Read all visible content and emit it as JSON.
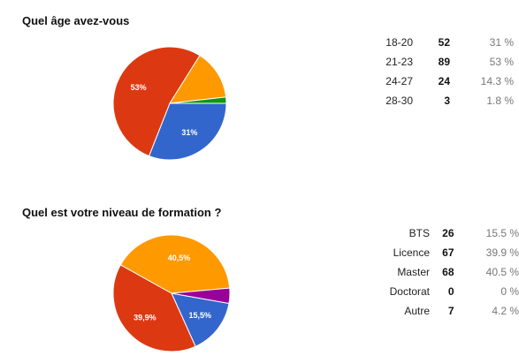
{
  "chart_data": [
    {
      "type": "pie",
      "title": "Quel âge avez-vous",
      "slices": [
        {
          "label": "18-20",
          "count": 52,
          "percent": "31 %",
          "value": 31,
          "color": "#3366cc",
          "pie_label": "31%"
        },
        {
          "label": "21-23",
          "count": 89,
          "percent": "53 %",
          "value": 53,
          "color": "#dc3912",
          "pie_label": "53%"
        },
        {
          "label": "24-27",
          "count": 24,
          "percent": "14.3 %",
          "value": 14.3,
          "color": "#ff9900",
          "pie_label": ""
        },
        {
          "label": "28-30",
          "count": 3,
          "percent": "1.8 %",
          "value": 1.8,
          "color": "#109618",
          "pie_label": ""
        }
      ]
    },
    {
      "type": "pie",
      "title": "Quel est votre niveau de formation ?",
      "slices": [
        {
          "label": "BTS",
          "count": 26,
          "percent": "15.5 %",
          "value": 15.5,
          "color": "#3366cc",
          "pie_label": "15,5%"
        },
        {
          "label": "Licence",
          "count": 67,
          "percent": "39.9 %",
          "value": 39.9,
          "color": "#dc3912",
          "pie_label": "39,9%"
        },
        {
          "label": "Master",
          "count": 68,
          "percent": "40.5 %",
          "value": 40.5,
          "color": "#ff9900",
          "pie_label": "40,5%"
        },
        {
          "label": "Doctorat",
          "count": 0,
          "percent": "0 %",
          "value": 0,
          "color": "#109618",
          "pie_label": ""
        },
        {
          "label": "Autre",
          "count": 7,
          "percent": "4.2 %",
          "value": 4.2,
          "color": "#990099",
          "pie_label": ""
        }
      ]
    }
  ]
}
